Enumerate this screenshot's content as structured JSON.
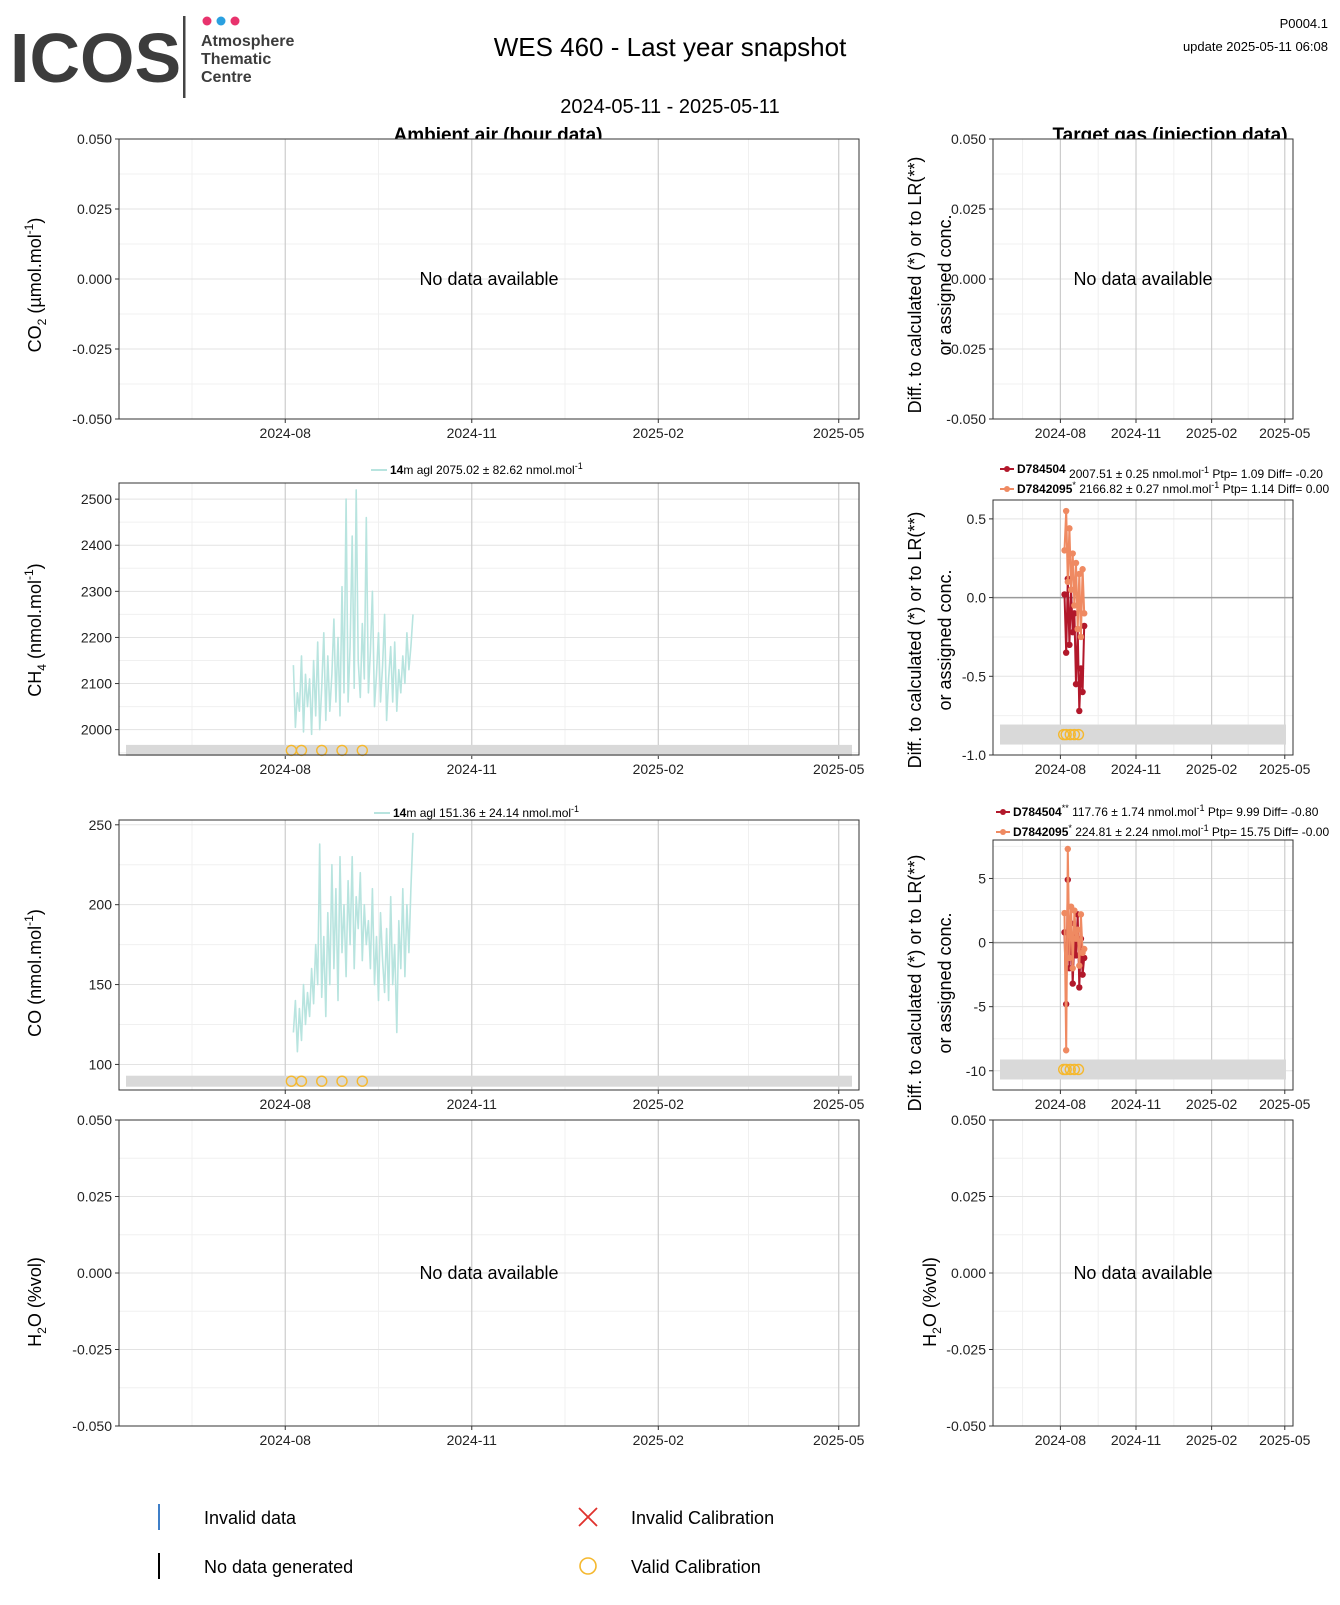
{
  "header": {
    "logo_text": "ICOS",
    "org_lines": [
      "Atmosphere",
      "Thematic",
      "Centre"
    ],
    "logo_dot_colors": [
      "#e8336d",
      "#2aa0e0",
      "#e8336d"
    ],
    "title": "WES 460 - Last year snapshot",
    "subtitle": "2024-05-11 - 2025-05-11",
    "product_code": "P0004.1",
    "update": "update  2025-05-11 06:08"
  },
  "column_titles": {
    "left": "Ambient air (hour data)",
    "right": "Target gas (injection data)"
  },
  "no_data_text": "No data available",
  "y_labels": {
    "co2": [
      "CO",
      "2",
      " (µmol.mol",
      "-1",
      ")"
    ],
    "ch4": [
      "CH",
      "4",
      " (nmol.mol",
      "-1",
      ")"
    ],
    "co": [
      "CO (nmol.mol",
      "-1",
      ")"
    ],
    "h2o": [
      "H",
      "2",
      "O (%vol)"
    ],
    "diff_line1": "Diff. to calculated (*) or to LR(**)",
    "diff_line2": "or assigned conc."
  },
  "x_ticks": [
    "2024-08",
    "2024-11",
    "2025-02",
    "2025-05"
  ],
  "x_tick_dates": [
    "2024-08-01",
    "2024-11-01",
    "2025-02-01",
    "2025-05-01"
  ],
  "x_range": [
    "2024-05-11",
    "2025-05-11"
  ],
  "colors": {
    "ambient_series": "#b8e4df",
    "target_dark": "#b2182b",
    "target_light": "#ef8a62",
    "valid_calibration": "#f5b82e",
    "invalid_calibration": "#e0322d",
    "invalid_data": "#3f7fc8",
    "no_data_generated": "#000000",
    "band": "#d9d9d9"
  },
  "ambient_legends": {
    "ch4": {
      "height": "14",
      "unit_text": "m agl 2075.02 ± 82.62 nmol.mol",
      "sup": "-1"
    },
    "co": {
      "height": "14",
      "unit_text": "m agl 151.36 ± 24.14 nmol.mol",
      "sup": "-1"
    }
  },
  "target_legends": {
    "ch4": [
      {
        "id": "D784504",
        "mark": "",
        "stats": " 2007.51 ± 0.25 nmol.mol",
        "sup": "-1",
        "tail": " Ptp= 1.09 Diff= -0.20"
      },
      {
        "id": "D7842095",
        "mark": "*",
        "stats": " 2166.82 ± 0.27 nmol.mol",
        "sup": "-1",
        "tail": " Ptp= 1.14 Diff= 0.00"
      }
    ],
    "co": [
      {
        "id": "D784504",
        "mark": "**",
        "stats": " 117.76 ± 1.74 nmol.mol",
        "sup": "-1",
        "tail": " Ptp= 9.99 Diff= -0.80"
      },
      {
        "id": "D7842095",
        "mark": "*",
        "stats": " 224.81 ± 2.24 nmol.mol",
        "sup": "-1",
        "tail": " Ptp= 15.75 Diff= -0.00"
      }
    ]
  },
  "legend": {
    "invalid_data": "Invalid data",
    "invalid_calibration": "Invalid Calibration",
    "no_data_generated": "No data generated",
    "valid_calibration": "Valid Calibration"
  },
  "chart_data": [
    {
      "id": "co2_ambient",
      "type": "line",
      "title": "Ambient air (hour data)",
      "ylabel": "CO2 (µmol.mol-1)",
      "ylim": [
        -0.05,
        0.05
      ],
      "yticks": [
        "0.050",
        "0.025",
        "0.000",
        "-0.025",
        "-0.050"
      ],
      "ytick_values": [
        0.05,
        0.025,
        0,
        -0.025,
        -0.05
      ],
      "series": [],
      "note": "No data available"
    },
    {
      "id": "co2_target",
      "type": "line",
      "title": "Target gas (injection data)",
      "ylabel": "Diff. to calculated (*) or to LR(**) or assigned conc.",
      "ylim": [
        -0.05,
        0.05
      ],
      "yticks": [
        "0.050",
        "0.025",
        "0.000",
        "-0.025",
        "-0.050"
      ],
      "ytick_values": [
        0.05,
        0.025,
        0,
        -0.025,
        -0.05
      ],
      "series": [],
      "note": "No data available"
    },
    {
      "id": "ch4_ambient",
      "type": "line",
      "ylabel": "CH4 (nmol.mol-1)",
      "ylim": [
        1945,
        2535
      ],
      "yticks": [
        "2500",
        "2400",
        "2300",
        "2200",
        "2100",
        "2000"
      ],
      "ytick_values": [
        2500,
        2400,
        2300,
        2200,
        2100,
        2000
      ],
      "series": [
        {
          "name": "14m agl",
          "x": [
            "2024-08-05",
            "2024-08-06",
            "2024-08-07",
            "2024-08-08",
            "2024-08-09",
            "2024-08-10",
            "2024-08-11",
            "2024-08-12",
            "2024-08-13",
            "2024-08-14",
            "2024-08-15",
            "2024-08-16",
            "2024-08-17",
            "2024-08-18",
            "2024-08-19",
            "2024-08-20",
            "2024-08-21",
            "2024-08-22",
            "2024-08-23",
            "2024-08-24",
            "2024-08-25",
            "2024-08-26",
            "2024-08-27",
            "2024-08-28",
            "2024-08-29",
            "2024-08-30",
            "2024-08-31",
            "2024-09-01",
            "2024-09-02",
            "2024-09-03",
            "2024-09-04",
            "2024-09-05",
            "2024-09-06",
            "2024-09-07",
            "2024-09-08",
            "2024-09-09",
            "2024-09-10",
            "2024-09-11",
            "2024-09-12",
            "2024-09-13",
            "2024-09-14",
            "2024-09-15",
            "2024-09-16",
            "2024-09-17",
            "2024-09-18",
            "2024-09-19",
            "2024-09-20",
            "2024-09-21",
            "2024-09-22",
            "2024-09-23",
            "2024-09-24",
            "2024-09-25",
            "2024-09-26",
            "2024-09-27",
            "2024-09-28",
            "2024-09-29",
            "2024-09-30",
            "2024-10-01",
            "2024-10-02",
            "2024-10-03"
          ],
          "values": [
            2140,
            2005,
            2080,
            2040,
            2160,
            1995,
            2120,
            2050,
            2110,
            1990,
            2150,
            2030,
            2190,
            2000,
            2090,
            2210,
            2020,
            2160,
            2040,
            2120,
            2240,
            2060,
            2200,
            2030,
            2310,
            2080,
            2500,
            2060,
            2180,
            2420,
            2090,
            2520,
            2150,
            2070,
            2230,
            2110,
            2460,
            2080,
            2170,
            2300,
            2050,
            2120,
            2210,
            2060,
            2140,
            2250,
            2020,
            2110,
            2180,
            2060,
            2190,
            2040,
            2130,
            2080,
            2160,
            2100,
            2210,
            2130,
            2180,
            2250
          ]
        }
      ],
      "valid_calibration_x": [
        "2024-08-04",
        "2024-08-09",
        "2024-08-19",
        "2024-08-29",
        "2024-09-08"
      ],
      "valid_calibration_y": 1955,
      "band_y": 1955
    },
    {
      "id": "ch4_target",
      "type": "line",
      "ylim": [
        -1.0,
        0.62
      ],
      "yticks": [
        "0.5",
        "0.0",
        "-0.5",
        "-1.0"
      ],
      "ytick_values": [
        0.5,
        0.0,
        -0.5,
        -1.0
      ],
      "series": [
        {
          "name": "D784504",
          "x": [
            "2024-08-06",
            "2024-08-08",
            "2024-08-10",
            "2024-08-12",
            "2024-08-14",
            "2024-08-16",
            "2024-08-18",
            "2024-08-20",
            "2024-08-22",
            "2024-08-24",
            "2024-08-26",
            "2024-08-28",
            "2024-08-30"
          ],
          "values": [
            0.02,
            -0.35,
            0.12,
            -0.3,
            0.05,
            -0.22,
            -0.1,
            -0.55,
            -0.2,
            -0.72,
            -0.45,
            -0.6,
            -0.18
          ]
        },
        {
          "name": "D7842095",
          "x": [
            "2024-08-06",
            "2024-08-08",
            "2024-08-10",
            "2024-08-12",
            "2024-08-14",
            "2024-08-16",
            "2024-08-18",
            "2024-08-20",
            "2024-08-22",
            "2024-08-24",
            "2024-08-26",
            "2024-08-28",
            "2024-08-30"
          ],
          "values": [
            0.3,
            0.55,
            0.1,
            0.44,
            0.05,
            0.28,
            -0.05,
            0.22,
            -0.2,
            0.15,
            -0.25,
            0.18,
            -0.1
          ]
        }
      ],
      "valid_calibration_x": [
        "2024-08-05",
        "2024-08-08",
        "2024-08-13",
        "2024-08-18",
        "2024-08-23"
      ],
      "valid_calibration_y": -0.87,
      "band_y": -0.87
    },
    {
      "id": "co_ambient",
      "type": "line",
      "ylabel": "CO (nmol.mol-1)",
      "ylim": [
        84,
        253
      ],
      "yticks": [
        "250",
        "200",
        "150",
        "100"
      ],
      "ytick_values": [
        250,
        200,
        150,
        100
      ],
      "series": [
        {
          "name": "14m agl",
          "x": [
            "2024-08-05",
            "2024-08-06",
            "2024-08-07",
            "2024-08-08",
            "2024-08-09",
            "2024-08-10",
            "2024-08-11",
            "2024-08-12",
            "2024-08-13",
            "2024-08-14",
            "2024-08-15",
            "2024-08-16",
            "2024-08-17",
            "2024-08-18",
            "2024-08-19",
            "2024-08-20",
            "2024-08-21",
            "2024-08-22",
            "2024-08-23",
            "2024-08-24",
            "2024-08-25",
            "2024-08-26",
            "2024-08-27",
            "2024-08-28",
            "2024-08-29",
            "2024-08-30",
            "2024-08-31",
            "2024-09-01",
            "2024-09-02",
            "2024-09-03",
            "2024-09-04",
            "2024-09-05",
            "2024-09-06",
            "2024-09-07",
            "2024-09-08",
            "2024-09-09",
            "2024-09-10",
            "2024-09-11",
            "2024-09-12",
            "2024-09-13",
            "2024-09-14",
            "2024-09-15",
            "2024-09-16",
            "2024-09-17",
            "2024-09-18",
            "2024-09-19",
            "2024-09-20",
            "2024-09-21",
            "2024-09-22",
            "2024-09-23",
            "2024-09-24",
            "2024-09-25",
            "2024-09-26",
            "2024-09-27",
            "2024-09-28",
            "2024-09-29",
            "2024-09-30",
            "2024-10-01",
            "2024-10-02",
            "2024-10-03"
          ],
          "values": [
            120,
            140,
            108,
            135,
            115,
            150,
            125,
            145,
            130,
            160,
            138,
            175,
            150,
            238,
            142,
            180,
            130,
            195,
            150,
            225,
            160,
            210,
            140,
            230,
            170,
            200,
            155,
            215,
            175,
            230,
            160,
            205,
            185,
            220,
            165,
            200,
            175,
            190,
            160,
            210,
            150,
            180,
            140,
            195,
            165,
            145,
            185,
            140,
            205,
            150,
            175,
            120,
            190,
            160,
            210,
            155,
            200,
            170,
            210,
            245
          ]
        }
      ],
      "valid_calibration_x": [
        "2024-08-04",
        "2024-08-09",
        "2024-08-19",
        "2024-08-29",
        "2024-09-08"
      ],
      "valid_calibration_y": 89.5,
      "band_y": 89.5
    },
    {
      "id": "co_target",
      "type": "line",
      "ylim": [
        -11.5,
        8.0
      ],
      "yticks": [
        "5",
        "0",
        "-5",
        "-10"
      ],
      "ytick_values": [
        5,
        0,
        -5,
        -10
      ],
      "series": [
        {
          "name": "D784504",
          "x": [
            "2024-08-06",
            "2024-08-08",
            "2024-08-10",
            "2024-08-12",
            "2024-08-14",
            "2024-08-16",
            "2024-08-18",
            "2024-08-20",
            "2024-08-22",
            "2024-08-24",
            "2024-08-26",
            "2024-08-28",
            "2024-08-30"
          ],
          "values": [
            0.8,
            -4.8,
            4.9,
            -2.0,
            1.5,
            -3.2,
            0.5,
            -1.0,
            2.2,
            -3.5,
            0.3,
            -2.5,
            -1.2
          ]
        },
        {
          "name": "D7842095",
          "x": [
            "2024-08-06",
            "2024-08-08",
            "2024-08-10",
            "2024-08-12",
            "2024-08-14",
            "2024-08-16",
            "2024-08-18",
            "2024-08-20",
            "2024-08-22",
            "2024-08-24",
            "2024-08-26",
            "2024-08-28",
            "2024-08-30"
          ],
          "values": [
            2.3,
            -8.4,
            7.3,
            -1.2,
            2.8,
            -2.0,
            2.5,
            0.3,
            1.0,
            -1.8,
            2.2,
            -0.8,
            -0.5
          ]
        }
      ],
      "valid_calibration_x": [
        "2024-08-05",
        "2024-08-08",
        "2024-08-13",
        "2024-08-18",
        "2024-08-23"
      ],
      "valid_calibration_y": -9.9,
      "band_y": -9.9
    },
    {
      "id": "h2o_ambient",
      "type": "line",
      "ylabel": "H2O (%vol)",
      "ylim": [
        -0.05,
        0.05
      ],
      "yticks": [
        "0.050",
        "0.025",
        "0.000",
        "-0.025",
        "-0.050"
      ],
      "ytick_values": [
        0.05,
        0.025,
        0,
        -0.025,
        -0.05
      ],
      "series": [],
      "note": "No data available"
    },
    {
      "id": "h2o_target",
      "type": "line",
      "ylabel": "H2O (%vol)",
      "ylim": [
        -0.05,
        0.05
      ],
      "yticks": [
        "0.050",
        "0.025",
        "0.000",
        "-0.025",
        "-0.050"
      ],
      "ytick_values": [
        0.05,
        0.025,
        0,
        -0.025,
        -0.05
      ],
      "series": [],
      "note": "No data available"
    }
  ]
}
